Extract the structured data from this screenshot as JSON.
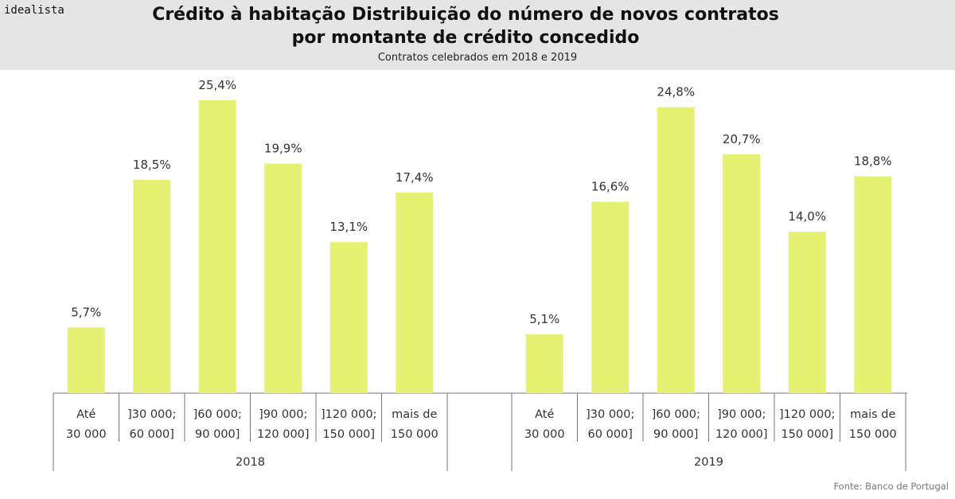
{
  "brand": "idealista",
  "chart_data": {
    "type": "bar",
    "title_line1": "Crédito à habitação Distribuição do número de novos contratos",
    "title_line2": "por montante de crédito concedido",
    "subtitle": "Contratos celebrados em 2018 e 2019",
    "categories": [
      [
        "Até",
        "30 000"
      ],
      [
        "]30 000;",
        "60 000]"
      ],
      [
        "]60 000;",
        "90 000]"
      ],
      [
        "]90 000;",
        "120 000]"
      ],
      [
        "]120 000;",
        "150 000]"
      ],
      [
        "mais de",
        "150 000"
      ]
    ],
    "groups": [
      {
        "name": "2018",
        "values": [
          5.7,
          18.5,
          25.4,
          19.9,
          13.1,
          17.4
        ],
        "labels": [
          "5,7%",
          "18,5%",
          "25,4%",
          "19,9%",
          "13,1%",
          "17,4%"
        ]
      },
      {
        "name": "2019",
        "values": [
          5.1,
          16.6,
          24.8,
          20.7,
          14.0,
          18.8
        ],
        "labels": [
          "5,1%",
          "16,6%",
          "24,8%",
          "20,7%",
          "14,0%",
          "18,8%"
        ]
      }
    ],
    "ylim": [
      0,
      27
    ],
    "grid": false,
    "bar_color": "#e5f173",
    "source": "Fonte: Banco de Portugal"
  }
}
